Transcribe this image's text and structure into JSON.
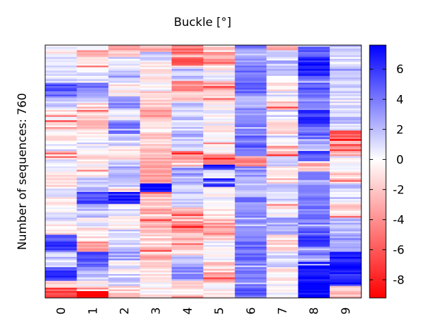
{
  "chart_data": {
    "type": "heatmap",
    "title": "Buckle [°]",
    "ylabel": "Number of sequences: 760",
    "xlabel": "",
    "columns": [
      "0",
      "1",
      "2",
      "3",
      "4",
      "5",
      "6",
      "7",
      "8",
      "9"
    ],
    "n_rows": 760,
    "colorbar": {
      "min": -9.2,
      "max": 7.6,
      "ticks": [
        "-8",
        "-6",
        "-4",
        "-2",
        "0",
        "2",
        "4",
        "6"
      ],
      "colormap": [
        "#ff0000",
        "#ffffff",
        "#0000ff"
      ]
    },
    "column_segments": [
      [
        [
          0.0,
          1.0
        ],
        [
          0.02,
          -0.5
        ],
        [
          0.05,
          0.8
        ],
        [
          0.1,
          1.2
        ],
        [
          0.15,
          5.0
        ],
        [
          0.2,
          2.0
        ],
        [
          0.25,
          -0.8
        ],
        [
          0.3,
          -2.5
        ],
        [
          0.34,
          -0.5
        ],
        [
          0.38,
          1.0
        ],
        [
          0.42,
          -1.5
        ],
        [
          0.45,
          0.5
        ],
        [
          0.5,
          -1.0
        ],
        [
          0.56,
          1.2
        ],
        [
          0.6,
          -0.3
        ],
        [
          0.65,
          0.8
        ],
        [
          0.7,
          -0.8
        ],
        [
          0.75,
          5.5
        ],
        [
          0.82,
          1.5
        ],
        [
          0.88,
          6.0
        ],
        [
          0.93,
          -2.0
        ],
        [
          0.96,
          -6.5
        ]
      ],
      [
        [
          0.0,
          -0.5
        ],
        [
          0.02,
          -3.0
        ],
        [
          0.05,
          -1.0
        ],
        [
          0.1,
          0.5
        ],
        [
          0.15,
          4.0
        ],
        [
          0.19,
          2.0
        ],
        [
          0.23,
          -1.5
        ],
        [
          0.3,
          -3.5
        ],
        [
          0.33,
          -1.0
        ],
        [
          0.37,
          0.5
        ],
        [
          0.42,
          -0.8
        ],
        [
          0.46,
          -0.5
        ],
        [
          0.52,
          1.5
        ],
        [
          0.58,
          5.0
        ],
        [
          0.63,
          1.5
        ],
        [
          0.68,
          0.3
        ],
        [
          0.72,
          -1.0
        ],
        [
          0.78,
          -3.5
        ],
        [
          0.82,
          5.0
        ],
        [
          0.88,
          2.0
        ],
        [
          0.93,
          -0.5
        ],
        [
          0.97,
          -9.0
        ]
      ],
      [
        [
          0.0,
          -4.0
        ],
        [
          0.02,
          -1.5
        ],
        [
          0.05,
          1.0
        ],
        [
          0.1,
          2.5
        ],
        [
          0.15,
          -0.5
        ],
        [
          0.2,
          3.5
        ],
        [
          0.25,
          0.5
        ],
        [
          0.3,
          4.0
        ],
        [
          0.35,
          1.0
        ],
        [
          0.4,
          -0.8
        ],
        [
          0.45,
          2.0
        ],
        [
          0.5,
          1.5
        ],
        [
          0.56,
          -1.0
        ],
        [
          0.58,
          6.5
        ],
        [
          0.63,
          0.5
        ],
        [
          0.68,
          -0.6
        ],
        [
          0.73,
          1.0
        ],
        [
          0.8,
          2.5
        ],
        [
          0.85,
          0.3
        ],
        [
          0.9,
          1.2
        ],
        [
          0.95,
          -1.5
        ]
      ],
      [
        [
          0.0,
          -2.5
        ],
        [
          0.03,
          1.5
        ],
        [
          0.06,
          -0.8
        ],
        [
          0.12,
          -0.3
        ],
        [
          0.18,
          -1.5
        ],
        [
          0.25,
          -3.0
        ],
        [
          0.3,
          -0.8
        ],
        [
          0.35,
          -1.5
        ],
        [
          0.4,
          -2.5
        ],
        [
          0.5,
          -3.0
        ],
        [
          0.55,
          7.0
        ],
        [
          0.58,
          -2.0
        ],
        [
          0.65,
          -3.0
        ],
        [
          0.72,
          -1.5
        ],
        [
          0.8,
          -2.5
        ],
        [
          0.85,
          -1.0
        ],
        [
          0.9,
          -0.6
        ]
      ],
      [
        [
          0.0,
          -5.0
        ],
        [
          0.04,
          -6.5
        ],
        [
          0.09,
          2.0
        ],
        [
          0.14,
          -4.5
        ],
        [
          0.18,
          -2.0
        ],
        [
          0.22,
          1.5
        ],
        [
          0.34,
          2.0
        ],
        [
          0.42,
          -4.0
        ],
        [
          0.45,
          -2.5
        ],
        [
          0.48,
          3.0
        ],
        [
          0.53,
          2.0
        ],
        [
          0.58,
          1.5
        ],
        [
          0.64,
          -3.0
        ],
        [
          0.68,
          -4.5
        ],
        [
          0.74,
          -2.5
        ],
        [
          0.78,
          -1.5
        ],
        [
          0.83,
          1.5
        ],
        [
          0.88,
          3.0
        ],
        [
          0.93,
          -1.5
        ],
        [
          0.98,
          -0.5
        ]
      ],
      [
        [
          0.0,
          -3.0
        ],
        [
          0.07,
          -2.0
        ],
        [
          0.1,
          0.0
        ],
        [
          0.14,
          -3.0
        ],
        [
          0.18,
          -1.5
        ],
        [
          0.22,
          0.0
        ],
        [
          0.34,
          -0.5
        ],
        [
          0.42,
          -0.5
        ],
        [
          0.43,
          -4.0
        ],
        [
          0.47,
          6.5
        ],
        [
          0.49,
          0.0
        ],
        [
          0.53,
          6.5
        ],
        [
          0.56,
          0.0
        ],
        [
          0.64,
          -2.0
        ],
        [
          0.7,
          -3.5
        ],
        [
          0.75,
          -2.0
        ],
        [
          0.78,
          0.0
        ],
        [
          0.86,
          -1.5
        ],
        [
          0.9,
          -3.0
        ],
        [
          0.94,
          0.0
        ]
      ],
      [
        [
          0.0,
          3.5
        ],
        [
          0.1,
          4.5
        ],
        [
          0.2,
          3.0
        ],
        [
          0.3,
          4.0
        ],
        [
          0.4,
          4.5
        ],
        [
          0.44,
          -4.0
        ],
        [
          0.48,
          3.0
        ],
        [
          0.55,
          2.5
        ],
        [
          0.6,
          3.5
        ],
        [
          0.7,
          3.0
        ],
        [
          0.78,
          4.0
        ],
        [
          0.9,
          4.5
        ]
      ],
      [
        [
          0.0,
          -3.5
        ],
        [
          0.02,
          0.5
        ],
        [
          0.06,
          2.0
        ],
        [
          0.12,
          -1.0
        ],
        [
          0.18,
          0.5
        ],
        [
          0.22,
          -2.5
        ],
        [
          0.26,
          1.0
        ],
        [
          0.3,
          -1.5
        ],
        [
          0.35,
          0.8
        ],
        [
          0.4,
          -3.5
        ],
        [
          0.44,
          1.0
        ],
        [
          0.48,
          -2.0
        ],
        [
          0.55,
          1.5
        ],
        [
          0.62,
          -0.5
        ],
        [
          0.68,
          2.5
        ],
        [
          0.75,
          -1.0
        ],
        [
          0.82,
          0.8
        ],
        [
          0.88,
          -0.5
        ],
        [
          0.94,
          0.5
        ]
      ],
      [
        [
          0.0,
          4.5
        ],
        [
          0.05,
          7.0
        ],
        [
          0.12,
          5.0
        ],
        [
          0.2,
          4.0
        ],
        [
          0.26,
          6.0
        ],
        [
          0.32,
          4.5
        ],
        [
          0.38,
          2.0
        ],
        [
          0.42,
          5.5
        ],
        [
          0.46,
          -2.5
        ],
        [
          0.5,
          3.0
        ],
        [
          0.56,
          4.0
        ],
        [
          0.62,
          3.5
        ],
        [
          0.7,
          4.5
        ],
        [
          0.76,
          5.5
        ],
        [
          0.8,
          4.0
        ],
        [
          0.86,
          7.5
        ]
      ],
      [
        [
          0.0,
          2.0
        ],
        [
          0.04,
          0.8
        ],
        [
          0.08,
          2.5
        ],
        [
          0.14,
          1.5
        ],
        [
          0.2,
          0.5
        ],
        [
          0.28,
          1.5
        ],
        [
          0.34,
          -5.5
        ],
        [
          0.38,
          -3.0
        ],
        [
          0.44,
          0.5
        ],
        [
          0.5,
          -1.5
        ],
        [
          0.55,
          1.5
        ],
        [
          0.62,
          -1.5
        ],
        [
          0.68,
          2.0
        ],
        [
          0.75,
          3.0
        ],
        [
          0.82,
          7.0
        ],
        [
          0.9,
          6.5
        ],
        [
          0.95,
          -2.0
        ]
      ]
    ]
  }
}
